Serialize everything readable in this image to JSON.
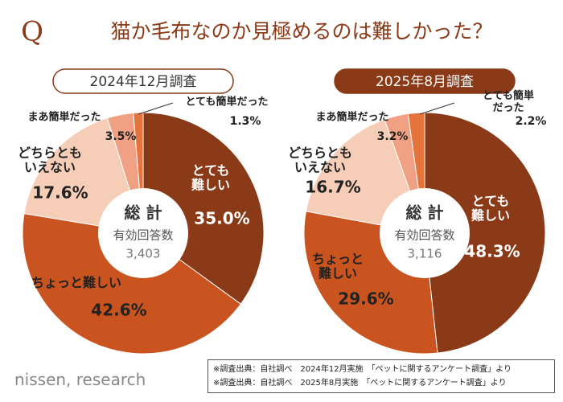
{
  "header": {
    "q": "Q",
    "title": "猫か毛布なのか見極めるのは難しかった？"
  },
  "chart_data": [
    {
      "type": "pie",
      "title": "2024年12月調査",
      "center_title": "総 計",
      "center_label": "有効回答数",
      "center_value": "3,403",
      "categories": [
        "とても\n難しい",
        "ちょっと難しい",
        "どちらとも\nいえない",
        "まあ簡単だった",
        "とても簡単だった"
      ],
      "values": [
        35.0,
        42.6,
        17.6,
        3.5,
        1.3
      ],
      "value_labels": [
        "35.0%",
        "42.6%",
        "17.6%",
        "3.5%",
        "1.3%"
      ],
      "colors": [
        "#8b3a17",
        "#c9541f",
        "#f6cdb6",
        "#f0a183",
        "#e4743c"
      ]
    },
    {
      "type": "pie",
      "title": "2025年8月調査",
      "center_title": "総 計",
      "center_label": "有効回答数",
      "center_value": "3,116",
      "categories": [
        "とても\n難しい",
        "ちょっと\n難しい",
        "どちらとも\nいえない",
        "まあ簡単だった",
        "とても簡単だった"
      ],
      "values": [
        48.3,
        29.6,
        16.7,
        3.2,
        2.2
      ],
      "value_labels": [
        "48.3%",
        "29.6%",
        "16.7%",
        "3.2%",
        "2.2%"
      ],
      "colors": [
        "#8b3a17",
        "#c9541f",
        "#f6cdb6",
        "#f0a183",
        "#e4743c"
      ]
    }
  ],
  "notes": [
    "※調査出典：自社調べ　2024年12月実施　「ペットに関するアンケート調査」より",
    "※調査出典：自社調べ　2025年8月実施　「ペットに関するアンケート調査」より"
  ],
  "logo": "nissen, research"
}
